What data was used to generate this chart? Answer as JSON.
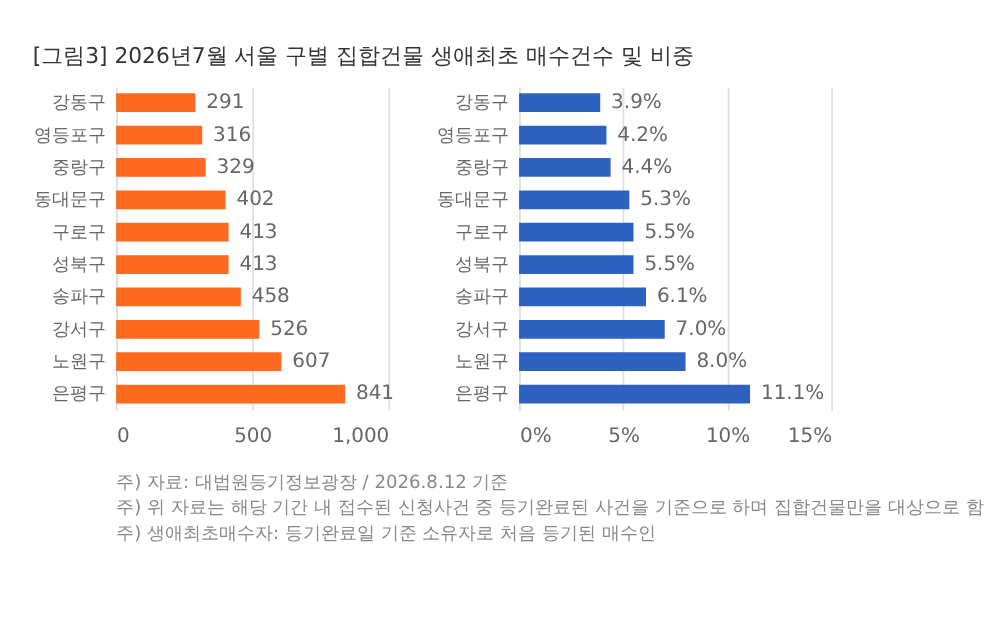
{
  "chart_data": [
    {
      "type": "bar",
      "orientation": "horizontal",
      "title": "[그림3] 2026년7월 서울 구별 집합건물 생애최초 매수건수 및 비중",
      "categories": [
        "강동구",
        "영등포구",
        "중랑구",
        "동대문구",
        "구로구",
        "성북구",
        "송파구",
        "강서구",
        "노원구",
        "은평구"
      ],
      "values": [
        291,
        316,
        329,
        402,
        413,
        413,
        458,
        526,
        607,
        841
      ],
      "color": "#fe6a1f",
      "xlim": [
        0,
        1000
      ],
      "xticks": [
        0,
        500,
        {
          "value": 1000,
          "label": "1,000"
        }
      ],
      "grid": "x",
      "data_labels": true,
      "annotations": [
        "주) 자료: 대법원등기정보광장 / 2026.8.12 기준",
        "주) 위 자료는 해당 기간 내 접수된 신청사건 중 등기완료된 사건을 기준으로 하며 집합건물만을 대상으로 함",
        "주) 생애최초매수자: 등기완료일 기준 소유자로 처음 등기된 매수인"
      ]
    },
    {
      "type": "bar",
      "orientation": "horizontal",
      "categories": [
        "강동구",
        "영등포구",
        "중랑구",
        "동대문구",
        "구로구",
        "성북구",
        "송파구",
        "강서구",
        "노원구",
        "은평구"
      ],
      "values": [
        3.9,
        4.2,
        4.4,
        5.3,
        5.5,
        5.5,
        6.1,
        7.0,
        8.0,
        11.1
      ],
      "color": "#2e62c0",
      "value_labels": [
        "3.9%",
        "4.2%",
        "4.4%",
        "5.3%",
        "5.5%",
        "5.5%",
        "6.1%",
        "7.0%",
        "8.0%",
        "11.1%"
      ],
      "xlim": [
        0,
        15
      ],
      "xticks": [
        {
          "value": 0,
          "label": "0%"
        },
        {
          "value": 5,
          "label": "5%"
        },
        {
          "value": 10,
          "label": "10%"
        },
        {
          "value": 15,
          "label": "15%"
        }
      ],
      "grid": "x"
    }
  ]
}
